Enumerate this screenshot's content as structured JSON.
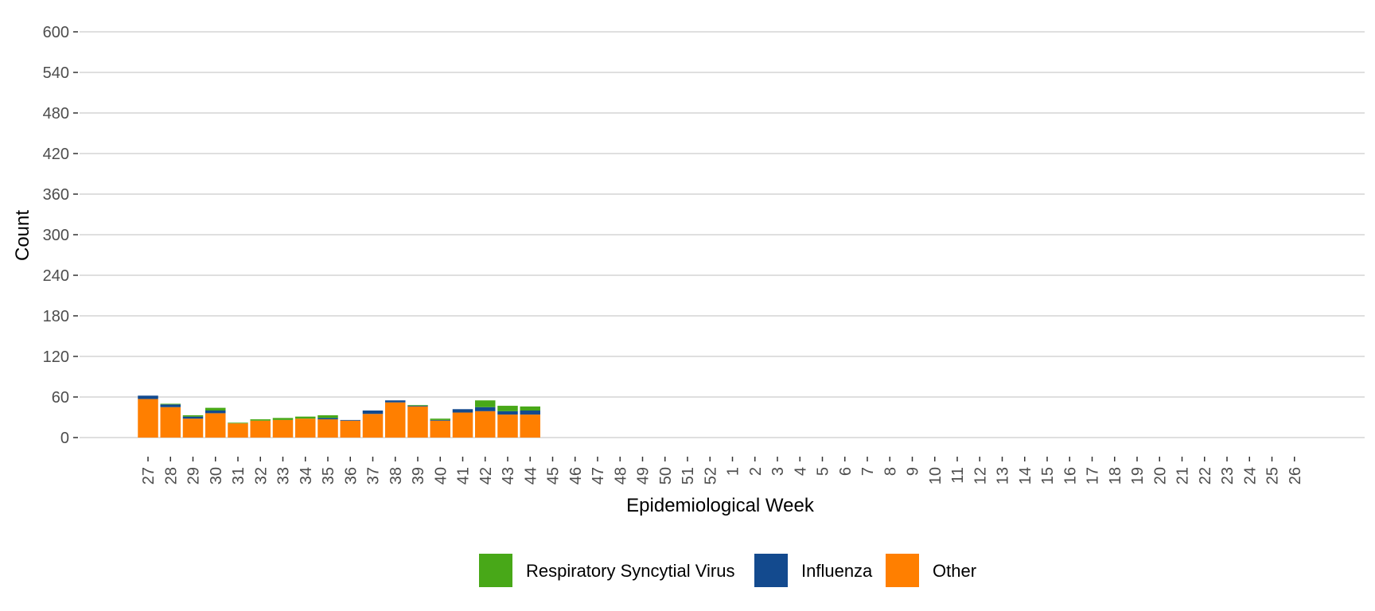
{
  "chart_data": {
    "type": "bar",
    "stacked": true,
    "title": "",
    "xlabel": "Epidemiological Week",
    "ylabel": "Count",
    "ylim": [
      0,
      600
    ],
    "yticks": [
      0,
      60,
      120,
      180,
      240,
      300,
      360,
      420,
      480,
      540,
      600
    ],
    "grid": "horizontal",
    "legend_position": "bottom",
    "categories": [
      "27",
      "28",
      "29",
      "30",
      "31",
      "32",
      "33",
      "34",
      "35",
      "36",
      "37",
      "38",
      "39",
      "40",
      "41",
      "42",
      "43",
      "44",
      "45",
      "46",
      "47",
      "48",
      "49",
      "50",
      "51",
      "52",
      "1",
      "2",
      "3",
      "4",
      "5",
      "6",
      "7",
      "8",
      "9",
      "10",
      "11",
      "12",
      "13",
      "14",
      "15",
      "16",
      "17",
      "18",
      "19",
      "20",
      "21",
      "22",
      "23",
      "24",
      "25",
      "26"
    ],
    "series": [
      {
        "name": "Other",
        "color": "#FF7F00",
        "values": [
          57,
          45,
          28,
          36,
          21,
          25,
          26,
          28,
          27,
          25,
          35,
          52,
          46,
          25,
          37,
          39,
          34,
          34,
          null,
          null,
          null,
          null,
          null,
          null,
          null,
          null,
          null,
          null,
          null,
          null,
          null,
          null,
          null,
          null,
          null,
          null,
          null,
          null,
          null,
          null,
          null,
          null,
          null,
          null,
          null,
          null,
          null,
          null,
          null,
          null,
          null,
          null
        ]
      },
      {
        "name": "Influenza",
        "color": "#134A8E",
        "values": [
          5,
          4,
          3,
          4,
          0,
          0,
          0,
          0,
          2,
          1,
          5,
          3,
          1,
          1,
          5,
          6,
          5,
          6,
          null,
          null,
          null,
          null,
          null,
          null,
          null,
          null,
          null,
          null,
          null,
          null,
          null,
          null,
          null,
          null,
          null,
          null,
          null,
          null,
          null,
          null,
          null,
          null,
          null,
          null,
          null,
          null,
          null,
          null,
          null,
          null,
          null,
          null
        ]
      },
      {
        "name": "Respiratory Syncytial Virus",
        "color": "#48A818",
        "values": [
          0,
          1,
          2,
          4,
          1,
          2,
          3,
          3,
          4,
          0,
          0,
          0,
          1,
          2,
          0,
          10,
          8,
          6,
          null,
          null,
          null,
          null,
          null,
          null,
          null,
          null,
          null,
          null,
          null,
          null,
          null,
          null,
          null,
          null,
          null,
          null,
          null,
          null,
          null,
          null,
          null,
          null,
          null,
          null,
          null,
          null,
          null,
          null,
          null,
          null,
          null,
          null
        ]
      }
    ],
    "legend_order": [
      "Respiratory Syncytial Virus",
      "Influenza",
      "Other"
    ]
  }
}
